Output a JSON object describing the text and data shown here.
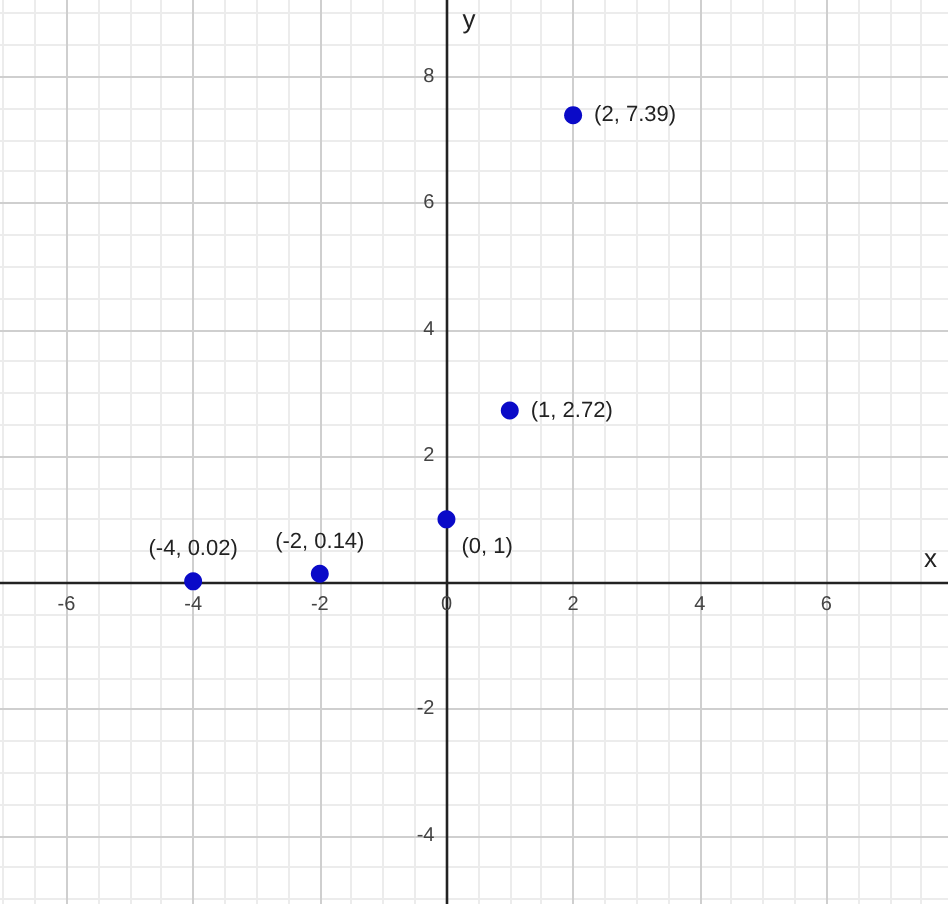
{
  "chart_data": {
    "type": "scatter",
    "xlabel": "x",
    "ylabel": "y",
    "x": [
      -4,
      -2,
      0,
      1,
      2
    ],
    "values": [
      0.02,
      0.14,
      1,
      2.72,
      7.39
    ],
    "color": "#0a0ac8",
    "value_labels": [
      "(-4, 0.02)",
      "(-2, 0.14)",
      "(0, 1)",
      "(1, 2.72)",
      "(2, 7.39)"
    ],
    "xlim": [
      -7.05,
      7.92
    ],
    "ylim": [
      -5.08,
      9.21
    ],
    "xticks": [
      -6,
      -4,
      -2,
      0,
      2,
      4,
      6
    ],
    "yticks": [
      -4,
      -2,
      2,
      4,
      6,
      8
    ],
    "grid": true,
    "marker": "circle"
  }
}
